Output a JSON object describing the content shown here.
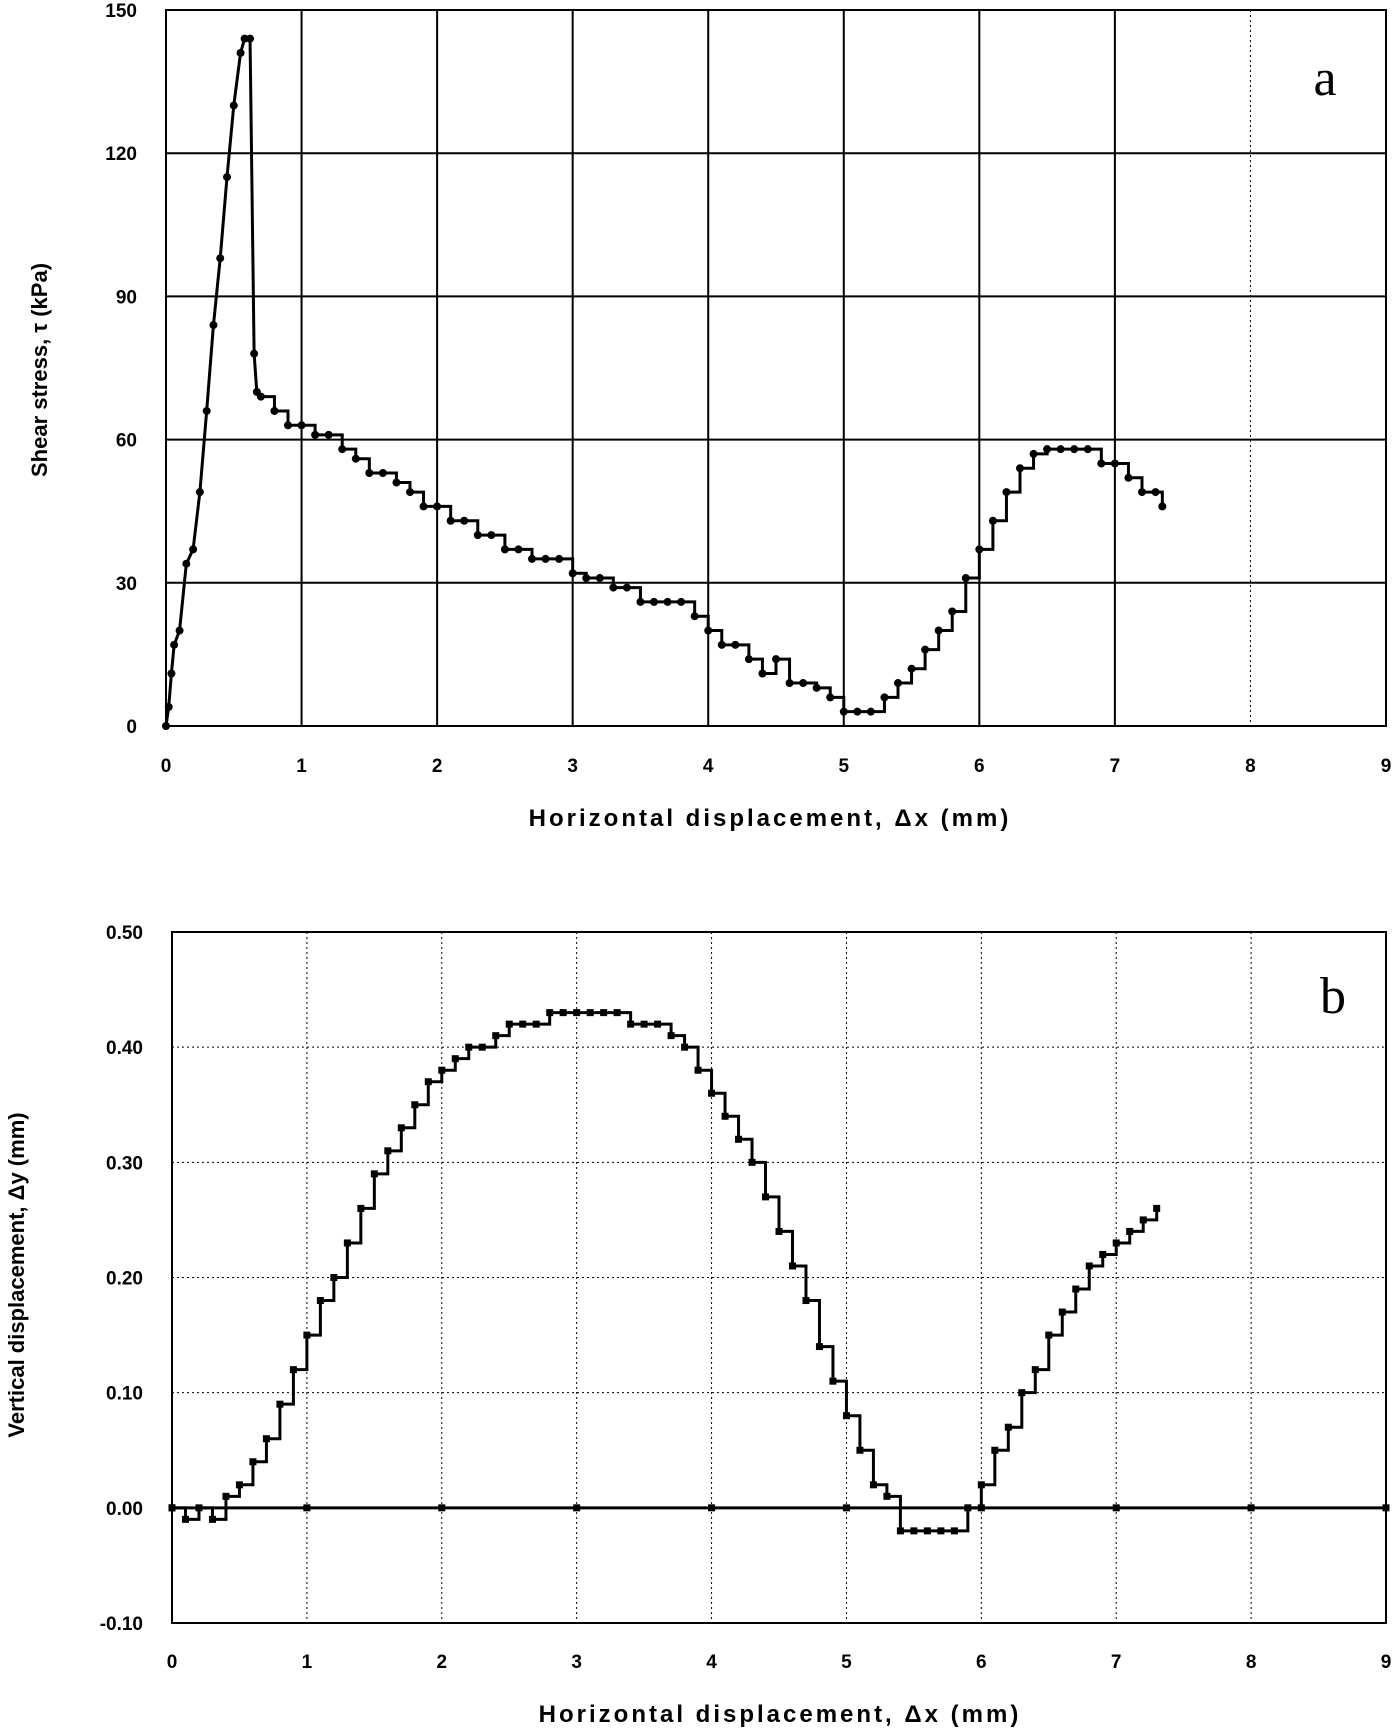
{
  "chart_data": [
    {
      "type": "line",
      "panel_label": "a",
      "xlabel": "Horizontal displacement, Δx (mm)",
      "ylabel": "Shear stress, τ (kPa)",
      "xlim": [
        0,
        9
      ],
      "ylim": [
        0,
        150
      ],
      "xticks": [
        "0",
        "1",
        "2",
        "3",
        "4",
        "5",
        "6",
        "7",
        "8",
        "9"
      ],
      "yticks": [
        "0",
        "30",
        "60",
        "90",
        "120",
        "150"
      ],
      "grid": true,
      "series": [
        {
          "x": [
            0,
            0.02,
            0.04,
            0.06,
            0.1,
            0.15,
            0.2,
            0.25,
            0.3,
            0.35,
            0.4,
            0.45,
            0.5,
            0.55,
            0.58,
            0.62,
            0.65,
            0.67,
            0.7,
            0.8,
            0.9,
            1.0,
            1.1,
            1.2,
            1.3,
            1.4,
            1.5,
            1.6,
            1.7,
            1.8,
            1.9,
            2.0,
            2.1,
            2.2,
            2.3,
            2.4,
            2.5,
            2.6,
            2.7,
            2.8,
            2.9,
            3.0,
            3.1,
            3.2,
            3.3,
            3.4,
            3.5,
            3.6,
            3.7,
            3.8,
            3.9,
            4.0,
            4.1,
            4.2,
            4.3,
            4.4,
            4.5,
            4.6,
            4.7,
            4.8,
            4.9,
            5.0,
            5.1,
            5.2,
            5.3,
            5.4,
            5.5,
            5.6,
            5.7,
            5.8,
            5.9,
            6.0,
            6.1,
            6.2,
            6.3,
            6.4,
            6.5,
            6.6,
            6.7,
            6.8,
            6.9,
            7.0,
            7.1,
            7.2,
            7.3,
            7.35
          ],
          "y": [
            0,
            4,
            11,
            17,
            20,
            34,
            37,
            49,
            66,
            84,
            98,
            115,
            130,
            141,
            144,
            144,
            78,
            70,
            69,
            66,
            63,
            63,
            61,
            61,
            58,
            56,
            53,
            53,
            51,
            49,
            46,
            46,
            43,
            43,
            40,
            40,
            37,
            37,
            35,
            35,
            35,
            32,
            31,
            31,
            29,
            29,
            26,
            26,
            26,
            26,
            23,
            20,
            17,
            17,
            14,
            11,
            14,
            9,
            9,
            8,
            6,
            3,
            3,
            3,
            6,
            9,
            12,
            16,
            20,
            24,
            31,
            37,
            43,
            49,
            54,
            57,
            58,
            58,
            58,
            58,
            55,
            55,
            52,
            49,
            49,
            46
          ]
        }
      ]
    },
    {
      "type": "line",
      "panel_label": "b",
      "xlabel": "Horizontal displacement, Δx (mm)",
      "ylabel": "Vertical displacement, Δy (mm)",
      "xlim": [
        0,
        9
      ],
      "ylim": [
        -0.1,
        0.5
      ],
      "xticks": [
        "0",
        "1",
        "2",
        "3",
        "4",
        "5",
        "6",
        "7",
        "8",
        "9"
      ],
      "yticks": [
        "-0.10",
        "0.00",
        "0.10",
        "0.20",
        "0.30",
        "0.40",
        "0.50"
      ],
      "grid": true,
      "series": [
        {
          "x": [
            0,
            0.1,
            0.2,
            0.3,
            0.4,
            0.5,
            0.6,
            0.7,
            0.8,
            0.9,
            1.0,
            1.1,
            1.2,
            1.3,
            1.4,
            1.5,
            1.6,
            1.7,
            1.8,
            1.9,
            2.0,
            2.1,
            2.2,
            2.3,
            2.4,
            2.5,
            2.6,
            2.7,
            2.8,
            2.9,
            3.0,
            3.1,
            3.2,
            3.3,
            3.4,
            3.5,
            3.6,
            3.7,
            3.8,
            3.9,
            4.0,
            4.1,
            4.2,
            4.3,
            4.4,
            4.5,
            4.6,
            4.7,
            4.8,
            4.9,
            5.0,
            5.1,
            5.2,
            5.3,
            5.4,
            5.5,
            5.6,
            5.7,
            5.8,
            5.9,
            6.0,
            6.1,
            6.2,
            6.3,
            6.4,
            6.5,
            6.6,
            6.7,
            6.8,
            6.9,
            7.0,
            7.1,
            7.2,
            7.3
          ],
          "y": [
            0.0,
            -0.01,
            0.0,
            -0.01,
            0.01,
            0.02,
            0.04,
            0.06,
            0.09,
            0.12,
            0.15,
            0.18,
            0.2,
            0.23,
            0.26,
            0.29,
            0.31,
            0.33,
            0.35,
            0.37,
            0.38,
            0.39,
            0.4,
            0.4,
            0.41,
            0.42,
            0.42,
            0.42,
            0.43,
            0.43,
            0.43,
            0.43,
            0.43,
            0.43,
            0.42,
            0.42,
            0.42,
            0.41,
            0.4,
            0.38,
            0.36,
            0.34,
            0.32,
            0.3,
            0.27,
            0.24,
            0.21,
            0.18,
            0.14,
            0.11,
            0.08,
            0.05,
            0.02,
            0.01,
            -0.02,
            -0.02,
            -0.02,
            -0.02,
            -0.02,
            0.0,
            0.02,
            0.05,
            0.07,
            0.1,
            0.12,
            0.15,
            0.17,
            0.19,
            0.21,
            0.22,
            0.23,
            0.24,
            0.25,
            0.26
          ]
        },
        {
          "x": [
            0,
            1,
            2,
            3,
            4,
            5,
            6,
            7,
            8,
            9
          ],
          "y": [
            0,
            0,
            0,
            0,
            0,
            0,
            0,
            0,
            0,
            0
          ]
        }
      ]
    }
  ]
}
